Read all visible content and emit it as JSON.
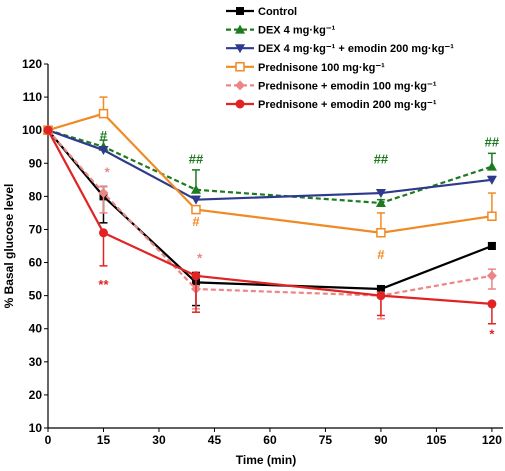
{
  "chart_data": {
    "type": "line",
    "title": "",
    "xlabel": "Time (min)",
    "ylabel": "% Basal glucose level",
    "x": [
      0,
      15,
      40,
      90,
      120
    ],
    "xlim": [
      0,
      123
    ],
    "ylim": [
      10,
      120
    ],
    "xticks": [
      0,
      15,
      30,
      45,
      60,
      75,
      90,
      105,
      120
    ],
    "yticks": [
      10,
      20,
      30,
      40,
      50,
      60,
      70,
      80,
      90,
      100,
      110,
      120
    ],
    "grid": false,
    "legend_position": "top-right",
    "series": [
      {
        "name": "Control",
        "color": "#000000",
        "line": "solid",
        "marker": "square",
        "values": [
          100,
          80,
          54,
          52,
          65
        ],
        "error_upper": [
          100,
          83,
          57,
          53,
          66
        ],
        "error_lower": [
          100,
          72,
          47,
          51,
          65
        ]
      },
      {
        "name": "DEX 4 mg·kg⁻¹",
        "color": "#1e7a1e",
        "line": "dashed",
        "marker": "triangle-up",
        "values": [
          100,
          95,
          82,
          78,
          89
        ],
        "error_upper": [
          100,
          97,
          88,
          79,
          93
        ],
        "error_lower": [
          100,
          95,
          82,
          78,
          89
        ]
      },
      {
        "name": "DEX 4 mg·kg⁻¹ + emodin 200 mg·kg⁻¹",
        "color": "#2e3a8c",
        "line": "solid",
        "marker": "triangle-down",
        "values": [
          100,
          94,
          79,
          81,
          85
        ],
        "error_upper": [
          100,
          95,
          80,
          82,
          86
        ],
        "error_lower": [
          100,
          94,
          79,
          81,
          85
        ]
      },
      {
        "name": "Prednisone 100 mg·kg⁻¹",
        "color": "#f08a24",
        "line": "solid",
        "marker": "square-open",
        "values": [
          100,
          105,
          76,
          69,
          74
        ],
        "error_upper": [
          100,
          110,
          76,
          75,
          81
        ],
        "error_lower": [
          100,
          105,
          76,
          69,
          74
        ]
      },
      {
        "name": "Prednisone + emodin 100 mg·kg⁻¹",
        "color": "#ec8585",
        "line": "dashed",
        "marker": "diamond",
        "values": [
          100,
          81,
          52,
          50,
          56
        ],
        "error_upper": [
          100,
          83,
          53,
          51,
          58
        ],
        "error_lower": [
          100,
          75,
          46,
          43,
          52
        ]
      },
      {
        "name": "Prednisone + emodin 200 mg·kg⁻¹",
        "color": "#e02424",
        "line": "solid",
        "marker": "circle",
        "values": [
          100,
          69,
          56,
          50,
          47.5
        ],
        "error_upper": [
          100,
          69,
          56,
          50,
          47.5
        ],
        "error_lower": [
          100,
          59,
          45,
          44,
          41.5
        ]
      }
    ],
    "annotations": [
      {
        "text": "#",
        "x": 15,
        "y": 97,
        "color": "#1e7a1e"
      },
      {
        "text": "*",
        "x": 16,
        "y": 86,
        "color": "#ec8585"
      },
      {
        "text": "**",
        "x": 15,
        "y": 52,
        "color": "#e02424"
      },
      {
        "text": "##",
        "x": 40,
        "y": 90,
        "color": "#1e7a1e"
      },
      {
        "text": "#",
        "x": 40,
        "y": 71,
        "color": "#f08a24"
      },
      {
        "text": "*",
        "x": 41,
        "y": 60,
        "color": "#ec8585"
      },
      {
        "text": "##",
        "x": 90,
        "y": 90,
        "color": "#1e7a1e"
      },
      {
        "text": "#",
        "x": 90,
        "y": 61,
        "color": "#f08a24"
      },
      {
        "text": "##",
        "x": 120,
        "y": 95,
        "color": "#1e7a1e"
      },
      {
        "text": "*",
        "x": 120,
        "y": 37,
        "color": "#e02424"
      }
    ]
  }
}
